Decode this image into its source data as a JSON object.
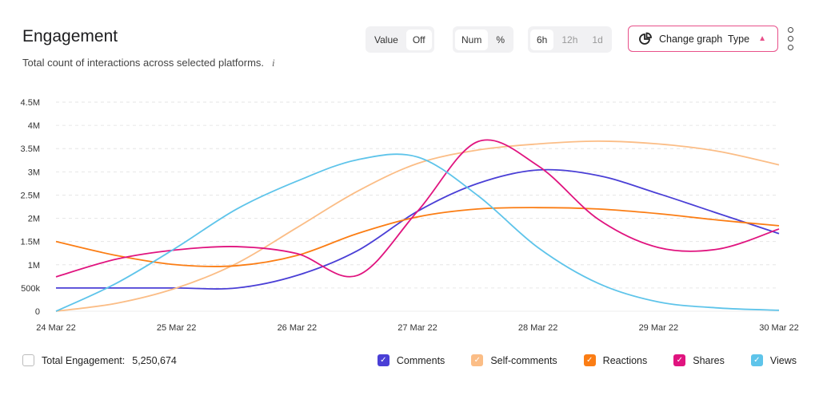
{
  "header": {
    "title": "Engagement",
    "subtitle": "Total count of interactions across selected platforms.",
    "info_icon": "i"
  },
  "controls": {
    "value_toggle": [
      "Value",
      "Off"
    ],
    "unit_toggle": [
      "Num",
      "%"
    ],
    "interval_toggle": [
      "6h",
      "12h",
      "1d"
    ],
    "change_graph_label": "Change graph  Type",
    "change_graph_icon": "pie-chart-icon",
    "accent": "#e8508a"
  },
  "footer": {
    "total_label": "Total Engagement:",
    "total_value": "5,250,674"
  },
  "chart_data": {
    "type": "line",
    "title": "",
    "xlabel": "",
    "ylabel": "",
    "x": [
      "24 Mar 22",
      "24 Mar 22 12:00",
      "25 Mar 22",
      "25 Mar 22 12:00",
      "26 Mar 22",
      "26 Mar 22 12:00",
      "27 Mar 22",
      "27 Mar 22 12:00",
      "28 Mar 22",
      "28 Mar 22 12:00",
      "29 Mar 22",
      "29 Mar 22 12:00",
      "30 Mar 22"
    ],
    "xticks": [
      "24 Mar 22",
      "25 Mar 22",
      "26 Mar 22",
      "27 Mar 22",
      "28 Mar 22",
      "29 Mar 22",
      "30 Mar 22"
    ],
    "yticks": [
      "0",
      "500k",
      "1M",
      "1.5M",
      "2M",
      "2.5M",
      "3M",
      "3.5M",
      "4M",
      "4.5M"
    ],
    "ylim": [
      0,
      4500000
    ],
    "grid": true,
    "legend": "bottom",
    "series": [
      {
        "name": "Comments",
        "color": "#4a3fd6",
        "values": [
          500000,
          500000,
          500000,
          500000,
          770000,
          1300000,
          2150000,
          2750000,
          3040000,
          2920000,
          2530000,
          2100000,
          1670000
        ]
      },
      {
        "name": "Self-comments",
        "color": "#fbbd86",
        "values": [
          0,
          170000,
          500000,
          1030000,
          1800000,
          2580000,
          3180000,
          3470000,
          3600000,
          3660000,
          3600000,
          3440000,
          3150000
        ]
      },
      {
        "name": "Reactions",
        "color": "#fb7d14",
        "values": [
          1500000,
          1200000,
          1000000,
          980000,
          1200000,
          1670000,
          2030000,
          2200000,
          2230000,
          2200000,
          2100000,
          1960000,
          1840000
        ]
      },
      {
        "name": "Shares",
        "color": "#e0147f",
        "values": [
          740000,
          1120000,
          1320000,
          1390000,
          1240000,
          770000,
          2150000,
          3650000,
          3130000,
          1980000,
          1370000,
          1340000,
          1770000
        ]
      },
      {
        "name": "Views",
        "color": "#5ec4ea",
        "values": [
          0,
          600000,
          1370000,
          2200000,
          2800000,
          3260000,
          3320000,
          2490000,
          1370000,
          600000,
          200000,
          70000,
          20000
        ]
      }
    ]
  }
}
